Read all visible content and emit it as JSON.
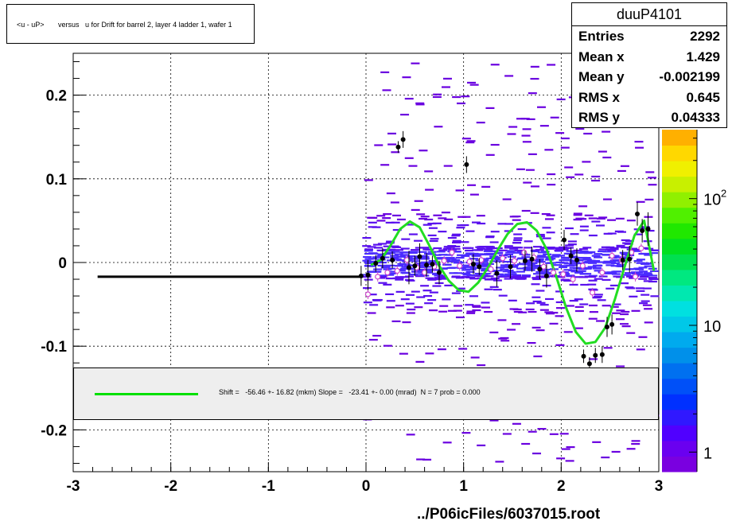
{
  "title": "<u - uP>       versus   u for Drift for barrel 2, layer 4 ladder 1, wafer 1",
  "stats": {
    "name": "duuP4101",
    "rows": [
      {
        "label": "Entries",
        "value": "2292"
      },
      {
        "label": "Mean x",
        "value": "1.429"
      },
      {
        "label": "Mean y",
        "value": "-0.002199"
      },
      {
        "label": "RMS x",
        "value": "0.645"
      },
      {
        "label": "RMS y",
        "value": "0.04333"
      }
    ]
  },
  "legend": {
    "text": "Shift =   -56.46 +- 16.82 (mkm) Slope =   -23.41 +- 0.00 (mrad)  N = 7 prob = 0.000",
    "color": "#00e000"
  },
  "footer": "../P06icFiles/6037015.root",
  "colors": {
    "histogram": "#5500dd",
    "points": "#000000",
    "profile": "#cc44cc",
    "fit": "#22dd22"
  },
  "chart_data": {
    "type": "scatter",
    "xlim": [
      -3,
      3
    ],
    "ylim": [
      -0.25,
      0.25
    ],
    "xticks": [
      -3,
      -2,
      -1,
      0,
      1,
      2,
      3
    ],
    "xtick_labels": [
      "-3",
      "-2",
      "-1",
      "0",
      "1",
      "2",
      "3"
    ],
    "yticks": [
      -0.2,
      -0.1,
      0,
      0.1,
      0.2
    ],
    "ytick_labels": [
      "-0.2",
      "-0.1",
      "0",
      "0.1",
      "0.2"
    ],
    "grid": true,
    "colorbar": {
      "ticks": [
        {
          "value": 1,
          "label": "1"
        },
        {
          "value": 10,
          "label": "10"
        },
        {
          "value": 100,
          "label": "10",
          "sup": "2"
        }
      ],
      "range": [
        0.7,
        350
      ],
      "scale": "log",
      "colors": [
        "#7a00e0",
        "#6a00f0",
        "#5000ff",
        "#3018ff",
        "#0030ff",
        "#0050f8",
        "#0070f0",
        "#0090ea",
        "#00aaee",
        "#00c8e8",
        "#00e0e0",
        "#00e8b0",
        "#00e880",
        "#00e050",
        "#00e020",
        "#20e800",
        "#50f000",
        "#90f000",
        "#c8f000",
        "#f0f000",
        "#ffd800",
        "#ffb000"
      ]
    },
    "profile_points": [
      {
        "x": -0.05,
        "y": -0.016,
        "ey": 0.012
      },
      {
        "x": 0.02,
        "y": -0.015,
        "ey": 0.018
      },
      {
        "x": 0.1,
        "y": -0.001,
        "ey": 0.01
      },
      {
        "x": 0.17,
        "y": 0.005,
        "ey": 0.012
      },
      {
        "x": 0.27,
        "y": 0.003,
        "ey": 0.01
      },
      {
        "x": 0.33,
        "y": 0.138,
        "ey": 0.007
      },
      {
        "x": 0.38,
        "y": 0.147,
        "ey": 0.01
      },
      {
        "x": 0.44,
        "y": -0.006,
        "ey": 0.02
      },
      {
        "x": 0.5,
        "y": -0.004,
        "ey": 0.012
      },
      {
        "x": 0.55,
        "y": 0.007,
        "ey": 0.016
      },
      {
        "x": 0.62,
        "y": -0.003,
        "ey": 0.014
      },
      {
        "x": 0.68,
        "y": -0.002,
        "ey": 0.01
      },
      {
        "x": 0.75,
        "y": -0.012,
        "ey": 0.014
      },
      {
        "x": 1.03,
        "y": 0.117,
        "ey": 0.01
      },
      {
        "x": 1.1,
        "y": -0.002,
        "ey": 0.012
      },
      {
        "x": 1.16,
        "y": -0.005,
        "ey": 0.01
      },
      {
        "x": 1.34,
        "y": -0.013,
        "ey": 0.016
      },
      {
        "x": 1.48,
        "y": -0.005,
        "ey": 0.014
      },
      {
        "x": 1.63,
        "y": 0.002,
        "ey": 0.012
      },
      {
        "x": 1.7,
        "y": 0.004,
        "ey": 0.015
      },
      {
        "x": 1.78,
        "y": -0.008,
        "ey": 0.012
      },
      {
        "x": 1.85,
        "y": -0.016,
        "ey": 0.014
      },
      {
        "x": 2.03,
        "y": 0.027,
        "ey": 0.012
      },
      {
        "x": 2.1,
        "y": 0.008,
        "ey": 0.01
      },
      {
        "x": 2.16,
        "y": 0.003,
        "ey": 0.014
      },
      {
        "x": 2.23,
        "y": -0.112,
        "ey": 0.008
      },
      {
        "x": 2.29,
        "y": -0.121,
        "ey": 0.008
      },
      {
        "x": 2.35,
        "y": -0.111,
        "ey": 0.009
      },
      {
        "x": 2.42,
        "y": -0.11,
        "ey": 0.01
      },
      {
        "x": 2.47,
        "y": -0.077,
        "ey": 0.012
      },
      {
        "x": 2.52,
        "y": -0.074,
        "ey": 0.012
      },
      {
        "x": 2.63,
        "y": 0.003,
        "ey": 0.012
      },
      {
        "x": 2.7,
        "y": 0.004,
        "ey": 0.016
      },
      {
        "x": 2.78,
        "y": 0.058,
        "ey": 0.014
      },
      {
        "x": 2.83,
        "y": 0.038,
        "ey": 0.014
      },
      {
        "x": 2.89,
        "y": 0.04,
        "ey": 0.02
      }
    ],
    "mean_points": [
      {
        "x": 0.02,
        "y": -0.038
      },
      {
        "x": 0.12,
        "y": -0.017
      },
      {
        "x": 0.22,
        "y": -0.012
      },
      {
        "x": 0.32,
        "y": -0.01
      },
      {
        "x": 0.42,
        "y": 0.003
      },
      {
        "x": 0.52,
        "y": -0.006
      },
      {
        "x": 0.6,
        "y": -0.012
      },
      {
        "x": 0.7,
        "y": -0.005
      },
      {
        "x": 0.8,
        "y": 0.002
      },
      {
        "x": 0.88,
        "y": 0.012
      },
      {
        "x": 0.96,
        "y": -0.004
      },
      {
        "x": 1.06,
        "y": 0.001
      },
      {
        "x": 1.18,
        "y": 0.003
      },
      {
        "x": 1.28,
        "y": -0.008
      },
      {
        "x": 1.4,
        "y": 0.005
      },
      {
        "x": 1.52,
        "y": 0.002
      },
      {
        "x": 1.62,
        "y": 0.012
      },
      {
        "x": 1.72,
        "y": 0.006
      },
      {
        "x": 1.82,
        "y": -0.005
      },
      {
        "x": 1.92,
        "y": -0.012
      },
      {
        "x": 2.02,
        "y": -0.014
      },
      {
        "x": 2.12,
        "y": -0.02
      },
      {
        "x": 2.22,
        "y": -0.004
      },
      {
        "x": 2.32,
        "y": -0.036
      },
      {
        "x": 2.42,
        "y": -0.012
      },
      {
        "x": 2.52,
        "y": 0.008
      },
      {
        "x": 2.62,
        "y": 0.003
      },
      {
        "x": 2.72,
        "y": 0.012
      },
      {
        "x": 2.76,
        "y": -0.017
      },
      {
        "x": 2.82,
        "y": 0.017
      }
    ],
    "underflow_line": {
      "x": [
        -2.75,
        -0.05
      ],
      "y": -0.017
    },
    "fit": {
      "type": "line",
      "x": [
        0.05,
        0.15,
        0.25,
        0.35,
        0.45,
        0.55,
        0.65,
        0.75,
        0.85,
        0.95,
        1.05,
        1.15,
        1.25,
        1.35,
        1.45,
        1.55,
        1.65,
        1.75,
        1.85,
        1.95,
        2.05,
        2.15,
        2.25,
        2.35,
        2.45,
        2.55,
        2.65,
        2.75,
        2.85,
        2.95
      ],
      "y": [
        -0.003,
        0.003,
        0.02,
        0.04,
        0.049,
        0.042,
        0.02,
        -0.004,
        -0.022,
        -0.033,
        -0.035,
        -0.024,
        -0.006,
        0.015,
        0.034,
        0.046,
        0.048,
        0.038,
        0.016,
        -0.017,
        -0.054,
        -0.083,
        -0.097,
        -0.095,
        -0.078,
        -0.044,
        -0.005,
        0.032,
        0.05,
        -0.01
      ]
    }
  }
}
